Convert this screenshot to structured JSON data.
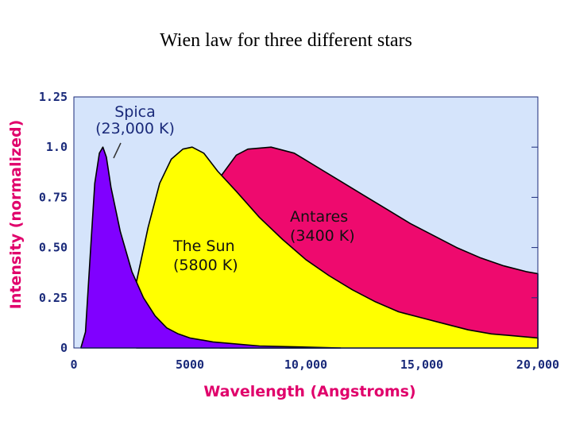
{
  "chart_data": {
    "type": "area",
    "title": "Wien law for three different stars",
    "xlabel": "Wavelength (Angstroms)",
    "ylabel": "Intensity (normalized)",
    "xlim": [
      0,
      20000
    ],
    "ylim": [
      0,
      1.25
    ],
    "xticks": [
      {
        "value": 0,
        "label": "0"
      },
      {
        "value": 5000,
        "label": "5000"
      },
      {
        "value": 10000,
        "label": "10,000"
      },
      {
        "value": 15000,
        "label": "15,000"
      },
      {
        "value": 20000,
        "label": "20,000"
      }
    ],
    "yticks": [
      {
        "value": 0,
        "label": "0"
      },
      {
        "value": 0.25,
        "label": "0.25"
      },
      {
        "value": 0.5,
        "label": "0.50"
      },
      {
        "value": 0.75,
        "label": "0.75"
      },
      {
        "value": 1.0,
        "label": "1.0"
      },
      {
        "value": 1.25,
        "label": "1.25"
      }
    ],
    "series": [
      {
        "name": "Antares",
        "label": "Antares",
        "temp_label": "(3400 K)",
        "temperature_K": 3400,
        "color": "#ee0a6e",
        "points": [
          [
            6300,
            0.85
          ],
          [
            7000,
            0.96
          ],
          [
            7500,
            0.99
          ],
          [
            8500,
            1.0
          ],
          [
            9500,
            0.97
          ],
          [
            10500,
            0.9
          ],
          [
            11500,
            0.83
          ],
          [
            12500,
            0.76
          ],
          [
            13500,
            0.69
          ],
          [
            14500,
            0.62
          ],
          [
            15500,
            0.56
          ],
          [
            16500,
            0.5
          ],
          [
            17500,
            0.45
          ],
          [
            18500,
            0.41
          ],
          [
            19500,
            0.38
          ],
          [
            20000,
            0.37
          ]
        ]
      },
      {
        "name": "The Sun",
        "label": "The Sun",
        "temp_label": "(5800 K)",
        "temperature_K": 5800,
        "color": "#ffff00",
        "points": [
          [
            2700,
            0.33
          ],
          [
            3200,
            0.6
          ],
          [
            3700,
            0.82
          ],
          [
            4200,
            0.94
          ],
          [
            4700,
            0.99
          ],
          [
            5100,
            1.0
          ],
          [
            5600,
            0.97
          ],
          [
            6200,
            0.88
          ],
          [
            7000,
            0.78
          ],
          [
            8000,
            0.65
          ],
          [
            9000,
            0.54
          ],
          [
            10000,
            0.44
          ],
          [
            11000,
            0.36
          ],
          [
            12000,
            0.29
          ],
          [
            13000,
            0.23
          ],
          [
            14000,
            0.18
          ],
          [
            15000,
            0.15
          ],
          [
            16000,
            0.12
          ],
          [
            17000,
            0.09
          ],
          [
            18000,
            0.07
          ],
          [
            19000,
            0.06
          ],
          [
            20000,
            0.05
          ]
        ]
      },
      {
        "name": "Spica",
        "label": "Spica",
        "temp_label": "(23,000 K)",
        "temperature_K": 23000,
        "color": "#8000ff",
        "points": [
          [
            300,
            0.0
          ],
          [
            500,
            0.08
          ],
          [
            700,
            0.45
          ],
          [
            900,
            0.82
          ],
          [
            1100,
            0.97
          ],
          [
            1250,
            1.0
          ],
          [
            1400,
            0.95
          ],
          [
            1600,
            0.8
          ],
          [
            2000,
            0.58
          ],
          [
            2500,
            0.38
          ],
          [
            3000,
            0.25
          ],
          [
            3500,
            0.16
          ],
          [
            4000,
            0.1
          ],
          [
            4500,
            0.07
          ],
          [
            5000,
            0.05
          ],
          [
            6000,
            0.03
          ],
          [
            8000,
            0.01
          ],
          [
            11500,
            0.0
          ]
        ]
      }
    ],
    "colors": {
      "plot_background": "#d5e4fb",
      "axis_text": "#1a2a7a",
      "axis_label": "#e0006b",
      "annotation_text": "#111111"
    }
  }
}
